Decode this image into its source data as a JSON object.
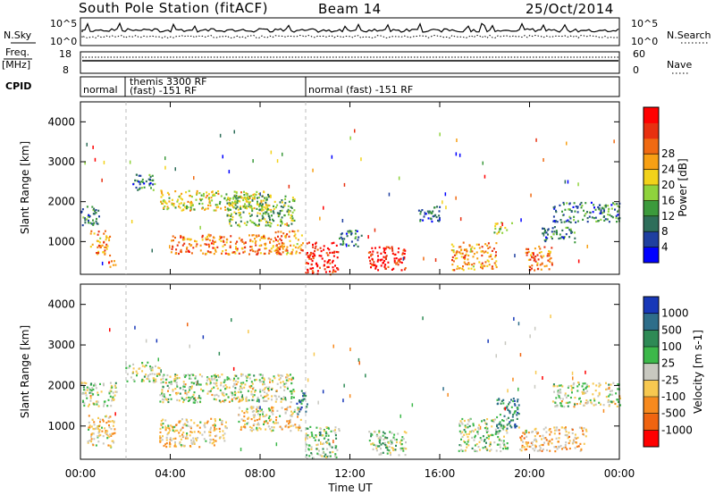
{
  "header": {
    "station": "South Pole Station (fitACF)",
    "beam": "Beam 14",
    "date": "25/Oct/2014"
  },
  "strips": {
    "nsky_label": "N.Sky",
    "nsearch_label": "N.Search",
    "exp_hi": "10^5",
    "exp_lo": "10^0",
    "freq_label": "Freq.",
    "freq_unit": "[MHz]",
    "freq_top": "18",
    "freq_bottom": "8",
    "nave_label": "Nave",
    "nave_top": "60",
    "nave_bottom": "0",
    "cpid_label": "CPID",
    "modes": [
      {
        "line1": "normal",
        "line2": ""
      },
      {
        "line1": "themis 3300 RF",
        "line2": "(fast) -151 RF"
      },
      {
        "line1": "normal (fast) -151 RF",
        "line2": ""
      }
    ]
  },
  "axes": {
    "ylabel": "Slant Range [km]",
    "xlabel": "Time UT",
    "yticks": [
      "1000",
      "2000",
      "3000",
      "4000"
    ],
    "xticks": [
      "00:00",
      "04:00",
      "08:00",
      "12:00",
      "16:00",
      "20:00",
      "00:00"
    ]
  },
  "colorbars": {
    "power": {
      "label": "Power [dB]",
      "ticks": [
        "4",
        "8",
        "12",
        "16",
        "20",
        "24",
        "28"
      ],
      "colors": [
        "#0000ff",
        "#1f3fa0",
        "#2e6e5a",
        "#3c9a3c",
        "#8fd33c",
        "#f2d21a",
        "#f7a014",
        "#f06a12",
        "#e83010",
        "#ff0000"
      ]
    },
    "velocity": {
      "label": "Velocity [m s-1]",
      "ticks": [
        "1000",
        "500",
        "100",
        "25",
        "-25",
        "-100",
        "-500",
        "-1000"
      ],
      "colors": [
        "#1838b8",
        "#2e6e8a",
        "#2e8a55",
        "#3cb84a",
        "#c8c8c0",
        "#f7c850",
        "#f78a1e",
        "#f06410",
        "#ff0000"
      ]
    }
  },
  "chart_data": [
    {
      "type": "heatmap",
      "name": "power",
      "xlim": [
        0,
        24
      ],
      "ylim": [
        180,
        4500
      ],
      "x_unit": "hours UT",
      "y_unit": "km",
      "value_range": [
        0,
        30
      ],
      "features": [
        {
          "t": [
            0.0,
            0.8
          ],
          "r": [
            1400,
            1900
          ],
          "v": 8
        },
        {
          "t": [
            0.4,
            1.3
          ],
          "r": [
            700,
            1300
          ],
          "v": 20
        },
        {
          "t": [
            1.2,
            1.6
          ],
          "r": [
            300,
            700
          ],
          "v": 24
        },
        {
          "t": [
            2.3,
            3.3
          ],
          "r": [
            2300,
            2700
          ],
          "v": 8
        },
        {
          "t": [
            3.5,
            8.5
          ],
          "r": [
            1800,
            2300
          ],
          "v": 16
        },
        {
          "t": [
            4.0,
            9.0
          ],
          "r": [
            700,
            1200
          ],
          "v": 22
        },
        {
          "t": [
            6.5,
            9.5
          ],
          "r": [
            1400,
            2200
          ],
          "v": 12
        },
        {
          "t": [
            8.6,
            9.9
          ],
          "r": [
            700,
            1300
          ],
          "v": 20
        },
        {
          "t": [
            10.0,
            11.5
          ],
          "r": [
            200,
            1000
          ],
          "v": 28
        },
        {
          "t": [
            11.5,
            12.5
          ],
          "r": [
            900,
            1300
          ],
          "v": 8
        },
        {
          "t": [
            12.8,
            14.5
          ],
          "r": [
            300,
            900
          ],
          "v": 28
        },
        {
          "t": [
            15.0,
            16.0
          ],
          "r": [
            1500,
            1900
          ],
          "v": 6
        },
        {
          "t": [
            16.5,
            18.5
          ],
          "r": [
            300,
            1000
          ],
          "v": 20
        },
        {
          "t": [
            18.4,
            19.2
          ],
          "r": [
            1200,
            1500
          ],
          "v": 14
        },
        {
          "t": [
            19.8,
            21.0
          ],
          "r": [
            300,
            900
          ],
          "v": 22
        },
        {
          "t": [
            21.0,
            24.0
          ],
          "r": [
            1500,
            2000
          ],
          "v": 8
        },
        {
          "t": [
            20.5,
            22.0
          ],
          "r": [
            1000,
            1400
          ],
          "v": 8
        }
      ]
    },
    {
      "type": "heatmap",
      "name": "velocity",
      "xlim": [
        0,
        24
      ],
      "ylim": [
        180,
        4500
      ],
      "x_unit": "hours UT",
      "y_unit": "km",
      "value_range": [
        -1000,
        1000
      ],
      "features": [
        {
          "t": [
            0.0,
            1.6
          ],
          "r": [
            1500,
            2100
          ],
          "v": 0
        },
        {
          "t": [
            0.3,
            1.5
          ],
          "r": [
            500,
            1300
          ],
          "v": -200
        },
        {
          "t": [
            2.0,
            3.5
          ],
          "r": [
            2100,
            2600
          ],
          "v": 0
        },
        {
          "t": [
            3.5,
            9.5
          ],
          "r": [
            1600,
            2300
          ],
          "v": 0
        },
        {
          "t": [
            3.5,
            6.5
          ],
          "r": [
            500,
            1200
          ],
          "v": -200
        },
        {
          "t": [
            7.0,
            9.8
          ],
          "r": [
            900,
            1500
          ],
          "v": -150
        },
        {
          "t": [
            9.6,
            10.1
          ],
          "r": [
            1300,
            1900
          ],
          "v": 600
        },
        {
          "t": [
            10.0,
            11.5
          ],
          "r": [
            200,
            1000
          ],
          "v": 120
        },
        {
          "t": [
            12.8,
            14.5
          ],
          "r": [
            300,
            900
          ],
          "v": 100
        },
        {
          "t": [
            16.8,
            19.0
          ],
          "r": [
            400,
            1200
          ],
          "v": 60
        },
        {
          "t": [
            18.5,
            19.5
          ],
          "r": [
            900,
            1700
          ],
          "v": 500
        },
        {
          "t": [
            19.5,
            22.5
          ],
          "r": [
            400,
            1000
          ],
          "v": -250
        },
        {
          "t": [
            21.0,
            24.0
          ],
          "r": [
            1500,
            2100
          ],
          "v": 0
        }
      ]
    }
  ]
}
